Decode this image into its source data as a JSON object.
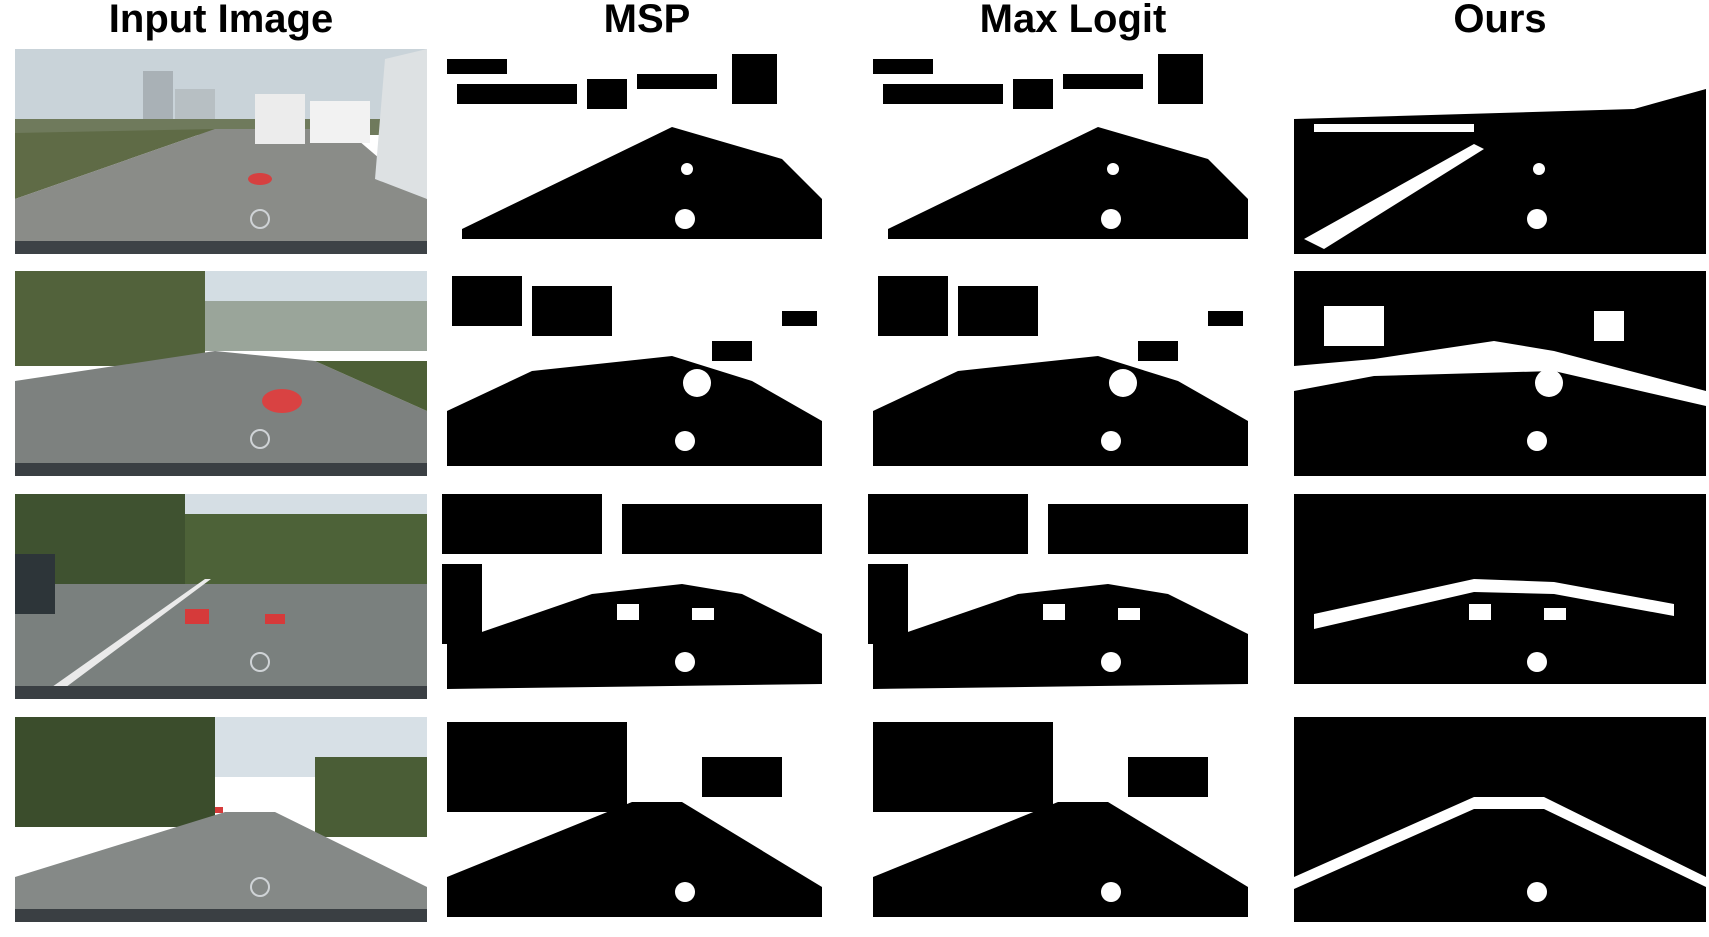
{
  "figure": {
    "columns": [
      {
        "key": "input",
        "title": "Input Image"
      },
      {
        "key": "msp",
        "title": "MSP"
      },
      {
        "key": "max_logit",
        "title": "Max Logit"
      },
      {
        "key": "ours",
        "title": "Ours"
      }
    ],
    "rows": [
      {
        "scene": "road with red toy object near vans and truck"
      },
      {
        "scene": "parking lot road with red ride-on toy car"
      },
      {
        "scene": "road with two red crates and lane marking"
      },
      {
        "scene": "tree-lined road with small red object"
      }
    ]
  }
}
